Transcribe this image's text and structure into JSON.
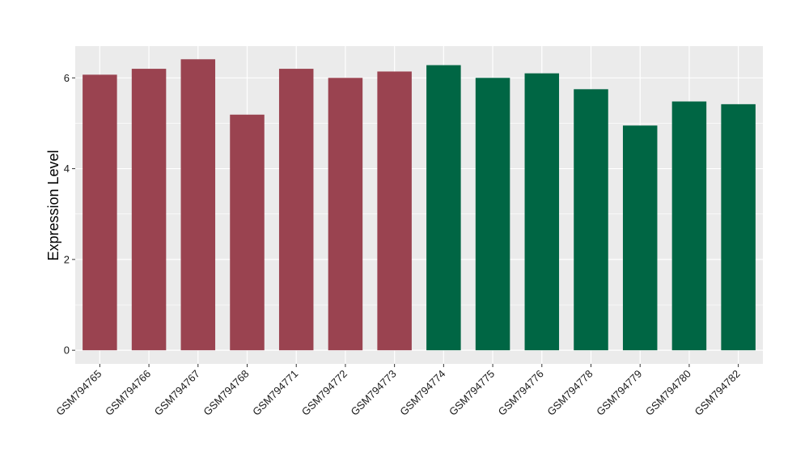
{
  "chart_data": {
    "type": "bar",
    "title": "",
    "xlabel": "",
    "ylabel": "Expression Level",
    "ylim": [
      -0.3,
      6.7
    ],
    "yticks": [
      0,
      2,
      4,
      6
    ],
    "yticks_labels": [
      "0",
      "2",
      "4",
      "6"
    ],
    "grid": true,
    "legend": "none",
    "panel_background": "#EBEBEB",
    "categories": [
      "GSM794765",
      "GSM794766",
      "GSM794767",
      "GSM794768",
      "GSM794771",
      "GSM794772",
      "GSM794773",
      "GSM794774",
      "GSM794775",
      "GSM794776",
      "GSM794778",
      "GSM794779",
      "GSM794780",
      "GSM794782"
    ],
    "values": [
      6.07,
      6.2,
      6.41,
      5.19,
      6.2,
      6.0,
      6.14,
      6.28,
      6.0,
      6.1,
      5.75,
      4.95,
      5.48,
      5.42
    ],
    "colors": [
      "#9A4350",
      "#9A4350",
      "#9A4350",
      "#9A4350",
      "#9A4350",
      "#9A4350",
      "#9A4350",
      "#006644",
      "#006644",
      "#006644",
      "#006644",
      "#006644",
      "#006644",
      "#006644"
    ]
  }
}
